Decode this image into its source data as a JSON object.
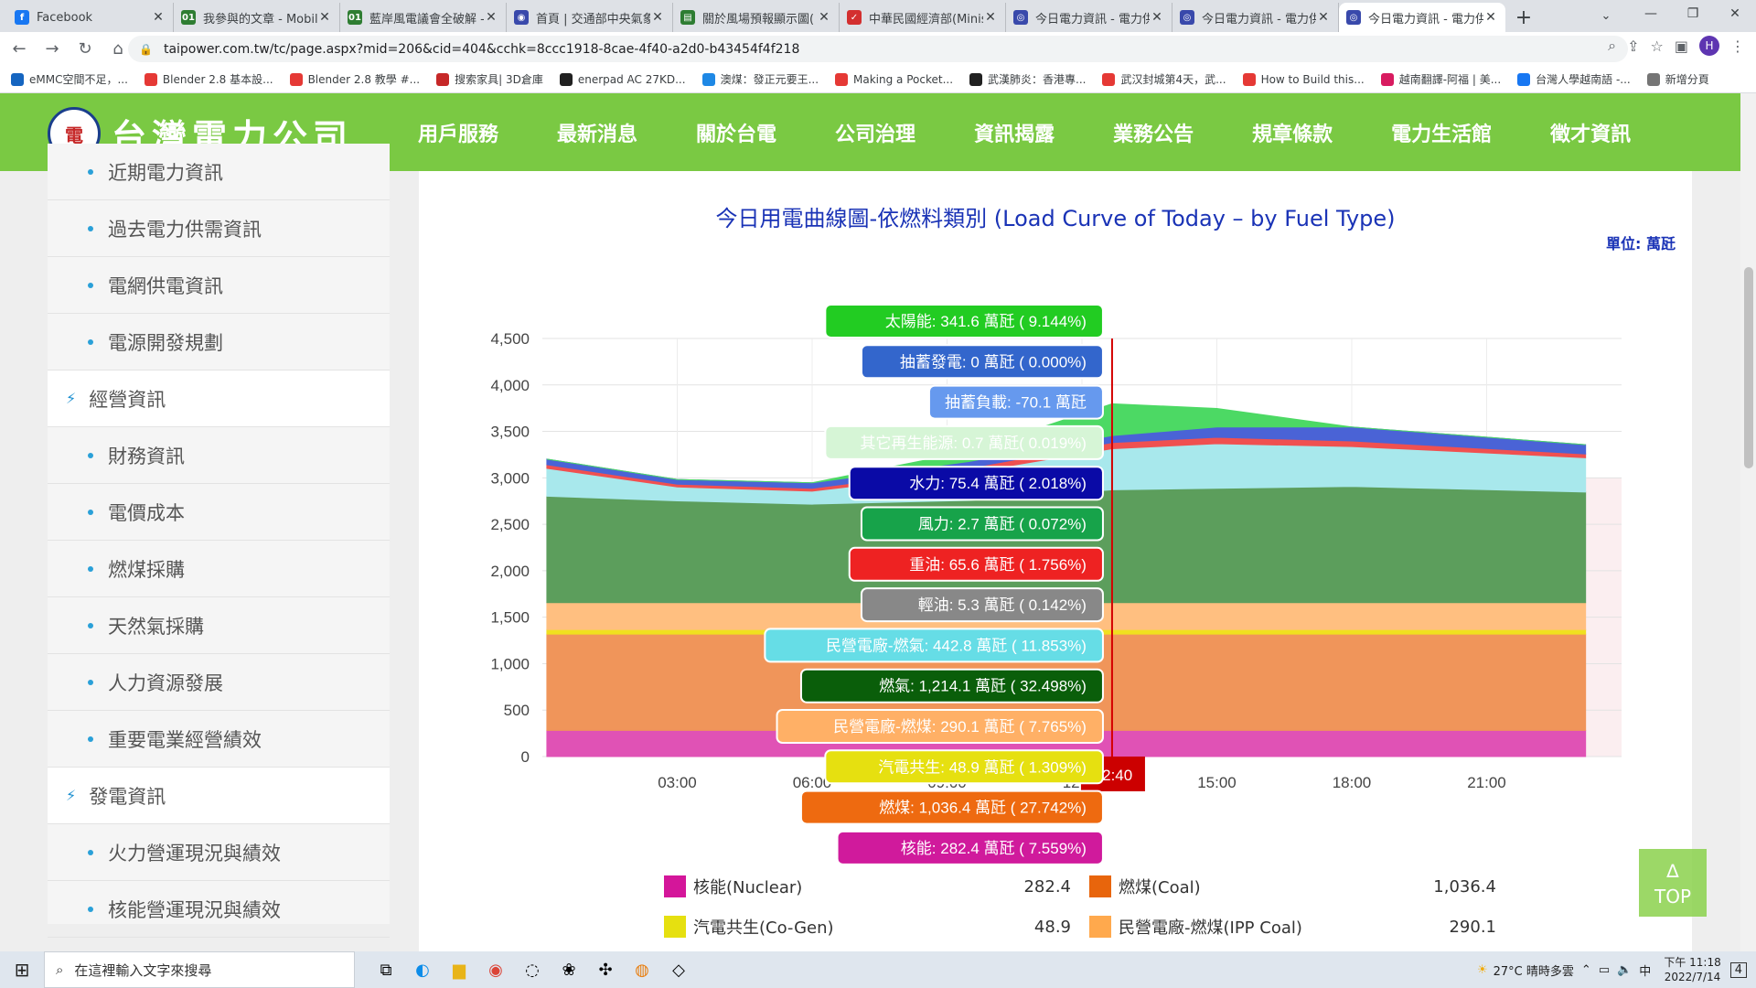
{
  "browser": {
    "tabs": [
      {
        "label": "Facebook",
        "color": "#1877f2",
        "icon": "facebook-icon",
        "glyph": "f"
      },
      {
        "label": "我參與的文章 - Mobil",
        "color": "#2e7d32",
        "icon": "mobile01-icon",
        "glyph": "01"
      },
      {
        "label": "藍岸風電議會全破解 -",
        "color": "#2e7d32",
        "icon": "mobile01-icon",
        "glyph": "01"
      },
      {
        "label": "首頁 | 交通部中央氣象",
        "color": "#3949ab",
        "icon": "cwb-icon",
        "glyph": "◉"
      },
      {
        "label": "關於風場預報顯示圖(",
        "color": "#2e7d32",
        "icon": "doc-icon",
        "glyph": "▤"
      },
      {
        "label": "中華民國經濟部(Minis",
        "color": "#d32f2f",
        "icon": "moea-icon",
        "glyph": "✓"
      },
      {
        "label": "今日電力資訊 - 電力供",
        "color": "#3949ab",
        "icon": "taipower-icon",
        "glyph": "◎"
      },
      {
        "label": "今日電力資訊 - 電力供",
        "color": "#3949ab",
        "icon": "taipower-icon",
        "glyph": "◎"
      },
      {
        "label": "今日電力資訊 - 電力供",
        "color": "#3949ab",
        "icon": "taipower-icon",
        "glyph": "◎"
      }
    ],
    "url": "taipower.com.tw/tc/page.aspx?mid=206&cid=404&cchk=8ccc1918-8cae-4f40-a2d0-b43454f4f218",
    "avatar_letter": "H",
    "bookmarks": [
      {
        "label": "eMMC空間不足，...",
        "color": "#1565c0"
      },
      {
        "label": "Blender 2.8 基本設...",
        "color": "#e53935"
      },
      {
        "label": "Blender 2.8 教學 #...",
        "color": "#e53935"
      },
      {
        "label": "搜索家具| 3D倉庫",
        "color": "#c62828"
      },
      {
        "label": "enerpad AC 27KD...",
        "color": "#212121"
      },
      {
        "label": "澳煤：發正元要王...",
        "color": "#1e88e5"
      },
      {
        "label": "Making a Pocket...",
        "color": "#e53935"
      },
      {
        "label": "武漢肺炎：香港專...",
        "color": "#212121"
      },
      {
        "label": "武汉封城第4天，武...",
        "color": "#e53935"
      },
      {
        "label": "How to Build this...",
        "color": "#e53935"
      },
      {
        "label": "越南翻譯-阿福 | 美...",
        "color": "#d81b60"
      },
      {
        "label": "台灣人學越南語 -...",
        "color": "#1877f2"
      },
      {
        "label": "新增分頁",
        "color": "#757575"
      }
    ]
  },
  "site": {
    "logo_mark": "電",
    "logo_text": "台灣電力公司",
    "nav": [
      "用戶服務",
      "最新消息",
      "關於台電",
      "公司治理",
      "資訊揭露",
      "業務公告",
      "規章條款",
      "電力生活館",
      "徵才資訊"
    ],
    "nav_active": 4,
    "sidebar": [
      {
        "label": "近期電力資訊",
        "type": "sub"
      },
      {
        "label": "過去電力供需資訊",
        "type": "sub"
      },
      {
        "label": "電網供電資訊",
        "type": "sub"
      },
      {
        "label": "電源開發規劃",
        "type": "sub"
      },
      {
        "label": "經營資訊",
        "type": "cat"
      },
      {
        "label": "財務資訊",
        "type": "sub"
      },
      {
        "label": "電價成本",
        "type": "sub"
      },
      {
        "label": "燃煤採購",
        "type": "sub"
      },
      {
        "label": "天然氣採購",
        "type": "sub"
      },
      {
        "label": "人力資源發展",
        "type": "sub"
      },
      {
        "label": "重要電業經營績效",
        "type": "sub"
      },
      {
        "label": "發電資訊",
        "type": "cat"
      },
      {
        "label": "火力營運現況與績效",
        "type": "sub"
      },
      {
        "label": "核能營運現況與績效",
        "type": "sub"
      }
    ],
    "top_button": {
      "arrow": "∆",
      "label": "TOP"
    }
  },
  "chart_data": {
    "type": "area",
    "title": "今日用電曲線圖-依燃料類別 (Load Curve of Today – by Fuel Type)",
    "unit_label": "單位: 萬瓩",
    "ylim": [
      0,
      4500
    ],
    "yticks": [
      "0",
      "500",
      "1,000",
      "1,500",
      "2,000",
      "2,500",
      "3,000",
      "3,500",
      "4,000",
      "4,500"
    ],
    "xticks": [
      "03:00",
      "06:00",
      "09:00",
      "12:00",
      "15:00",
      "18:00",
      "21:00"
    ],
    "x_range_hours": [
      0,
      24
    ],
    "data_end_hour": 23.2,
    "cursor_time": "12:40",
    "cursor_hour": 12.67,
    "series": [
      {
        "key": "nuclear",
        "color": "#e052b5",
        "values": [
          282,
          282,
          282,
          282,
          282,
          282,
          282,
          282
        ]
      },
      {
        "key": "coal",
        "color": "#f0955a",
        "values": [
          1036,
          1036,
          1036,
          1036,
          1036,
          1036,
          1036,
          1036
        ]
      },
      {
        "key": "cogen",
        "color": "#f0e020",
        "values": [
          49,
          49,
          49,
          49,
          49,
          49,
          49,
          49
        ]
      },
      {
        "key": "ipp_coal",
        "color": "#ffbf80",
        "values": [
          290,
          290,
          290,
          290,
          290,
          290,
          290,
          290
        ]
      },
      {
        "key": "lng",
        "color": "#5c9e5c",
        "values": [
          1145,
          1095,
          1060,
          1100,
          1214,
          1230,
          1250,
          1190
        ]
      },
      {
        "key": "ipp_lng",
        "color": "#a8e8ec",
        "values": [
          300,
          150,
          140,
          300,
          443,
          480,
          430,
          370
        ]
      },
      {
        "key": "oil",
        "color": "#f05050",
        "values": [
          40,
          30,
          30,
          50,
          66,
          70,
          60,
          40
        ]
      },
      {
        "key": "hydro",
        "color": "#4a63d6",
        "values": [
          60,
          50,
          60,
          70,
          75,
          110,
          150,
          100
        ]
      },
      {
        "key": "solar",
        "color": "#4cd964",
        "values": [
          0,
          0,
          0,
          110,
          342,
          200,
          0,
          0
        ]
      }
    ],
    "series_x_hours": [
      0.1,
      3,
      6,
      9.5,
      12.67,
      15,
      18,
      23.2
    ],
    "tooltip": [
      {
        "text": "太陽能: 341.6 萬瓩 ( 9.144%)",
        "bg": "#22cc22",
        "fg": "#ffffff"
      },
      {
        "text": "抽蓄發電: 0 萬瓩 ( 0.000%)",
        "bg": "#3366cc",
        "fg": "#ffffff"
      },
      {
        "text": "抽蓄負載: -70.1 萬瓩",
        "bg": "#6699ee",
        "fg": "#ffffff"
      },
      {
        "text": "其它再生能源: 0.7 萬瓩( 0.019%)",
        "bg": "#d6f5d6",
        "fg": "#ffffff"
      },
      {
        "text": "水力: 75.4 萬瓩 ( 2.018%)",
        "bg": "#0a0aa6",
        "fg": "#ffffff"
      },
      {
        "text": "風力: 2.7 萬瓩 ( 0.072%)",
        "bg": "#17a34a",
        "fg": "#ffffff"
      },
      {
        "text": "重油: 65.6 萬瓩 ( 1.756%)",
        "bg": "#ee2222",
        "fg": "#ffffff"
      },
      {
        "text": "輕油: 5.3 萬瓩 ( 0.142%)",
        "bg": "#888888",
        "fg": "#ffffff"
      },
      {
        "text": "民營電廠-燃氣: 442.8 萬瓩 ( 11.853%)",
        "bg": "#66dde6",
        "fg": "#ffffff"
      },
      {
        "text": "燃氣: 1,214.1 萬瓩 ( 32.498%)",
        "bg": "#0a5e0a",
        "fg": "#ffffff"
      },
      {
        "text": "民營電廠-燃煤: 290.1 萬瓩 ( 7.765%)",
        "bg": "#ffb066",
        "fg": "#ffffff"
      },
      {
        "text": "汽電共生: 48.9 萬瓩 ( 1.309%)",
        "bg": "#e6e010",
        "fg": "#ffffff"
      },
      {
        "text": "燃煤: 1,036.4 萬瓩 ( 27.742%)",
        "bg": "#ee6a10",
        "fg": "#ffffff"
      },
      {
        "text": "核能: 282.4 萬瓩 ( 7.559%)",
        "bg": "#d01a9c",
        "fg": "#ffffff"
      }
    ],
    "legend": [
      [
        {
          "label": "核能(Nuclear)",
          "value": "282.4",
          "color": "#d4169a"
        },
        {
          "label": "燃煤(Coal)",
          "value": "1,036.4",
          "color": "#e8650c"
        }
      ],
      [
        {
          "label": "汽電共生(Co-Gen)",
          "value": "48.9",
          "color": "#e6e010"
        },
        {
          "label": "民營電廠-燃煤(IPP Coal)",
          "value": "290.1",
          "color": "#ffa94d"
        }
      ]
    ]
  },
  "taskbar": {
    "search_placeholder": "在這裡輸入文字來搜尋",
    "weather": "27°C  晴時多雲",
    "ime": "中",
    "time": "下午 11:18",
    "date": "2022/7/14",
    "notif_count": "4"
  }
}
